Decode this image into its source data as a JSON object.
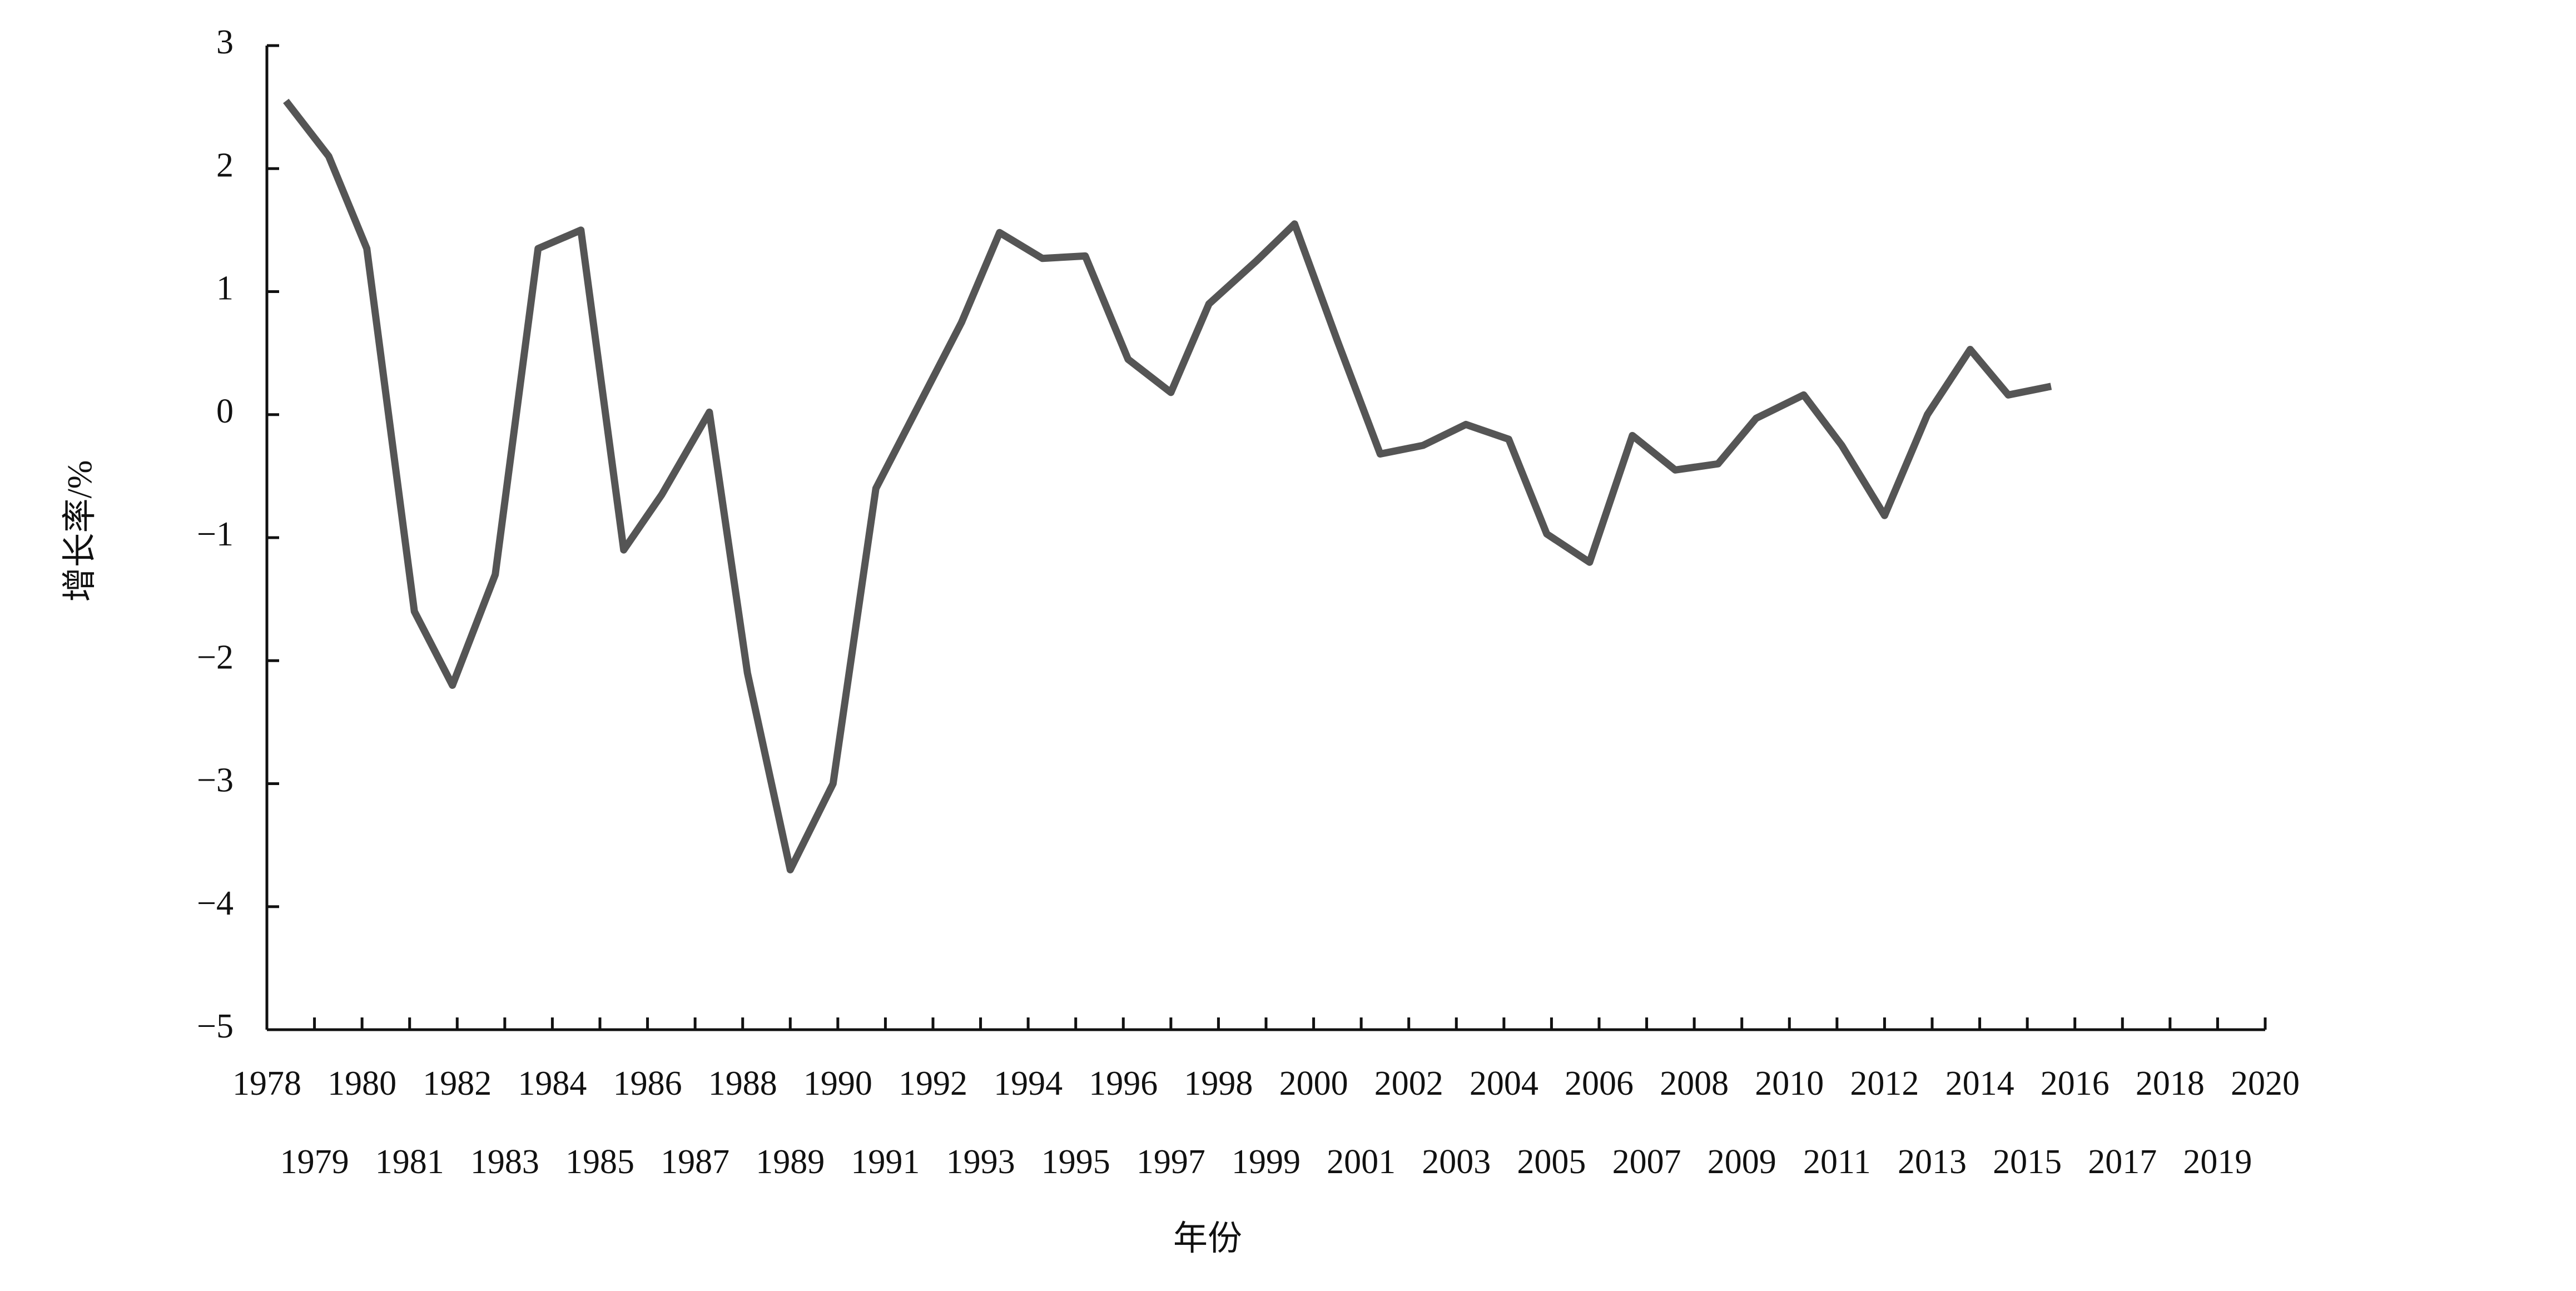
{
  "chart_data": {
    "type": "line",
    "x_label": "年份",
    "y_label": "增长率/%",
    "x": [
      1978.4,
      1979.3,
      1980.1,
      1981.1,
      1981.9,
      1982.8,
      1983.7,
      1984.6,
      1985.5,
      1986.3,
      1987.3,
      1988.1,
      1989.0,
      1989.9,
      1990.8,
      1991.6,
      1992.6,
      1993.4,
      1994.3,
      1995.2,
      1996.1,
      1997.0,
      1997.8,
      1998.8,
      1999.6,
      2000.5,
      2001.4,
      2002.3,
      2003.2,
      2004.1,
      2004.9,
      2005.8,
      2006.7,
      2007.6,
      2008.5,
      2009.3,
      2010.3,
      2011.1,
      2012.0,
      2012.9,
      2013.8,
      2014.6,
      2015.5
    ],
    "values": [
      2.55,
      2.1,
      1.35,
      -1.6,
      -2.2,
      -1.3,
      1.35,
      1.5,
      -1.1,
      -0.65,
      0.02,
      -2.1,
      -3.7,
      -3.0,
      -0.6,
      0.0,
      0.75,
      1.48,
      1.27,
      1.29,
      0.45,
      0.18,
      0.9,
      1.25,
      1.55,
      0.6,
      -0.32,
      -0.25,
      -0.08,
      -0.2,
      -0.97,
      -1.2,
      -0.17,
      -0.45,
      -0.4,
      -0.03,
      0.16,
      -0.25,
      -0.82,
      0.0,
      0.53,
      0.16,
      0.23
    ],
    "color": "#555555",
    "xlim": [
      1978,
      2020
    ],
    "xticks": [
      1978,
      1979,
      1980,
      1981,
      1982,
      1983,
      1984,
      1985,
      1986,
      1987,
      1988,
      1989,
      1990,
      1991,
      1992,
      1993,
      1994,
      1995,
      1996,
      1997,
      1998,
      1999,
      2000,
      2001,
      2002,
      2003,
      2004,
      2005,
      2006,
      2007,
      2008,
      2009,
      2010,
      2011,
      2012,
      2013,
      2014,
      2015,
      2016,
      2017,
      2018,
      2019,
      2020
    ],
    "ylim": [
      -5,
      3
    ],
    "yticks": [
      {
        "value": -5,
        "label": "−5"
      },
      {
        "value": -4,
        "label": "−4"
      },
      {
        "value": -3,
        "label": "−3"
      },
      {
        "value": -2,
        "label": "−2"
      },
      {
        "value": -1,
        "label": "−1"
      },
      0,
      1,
      2,
      3
    ],
    "grid": false
  }
}
